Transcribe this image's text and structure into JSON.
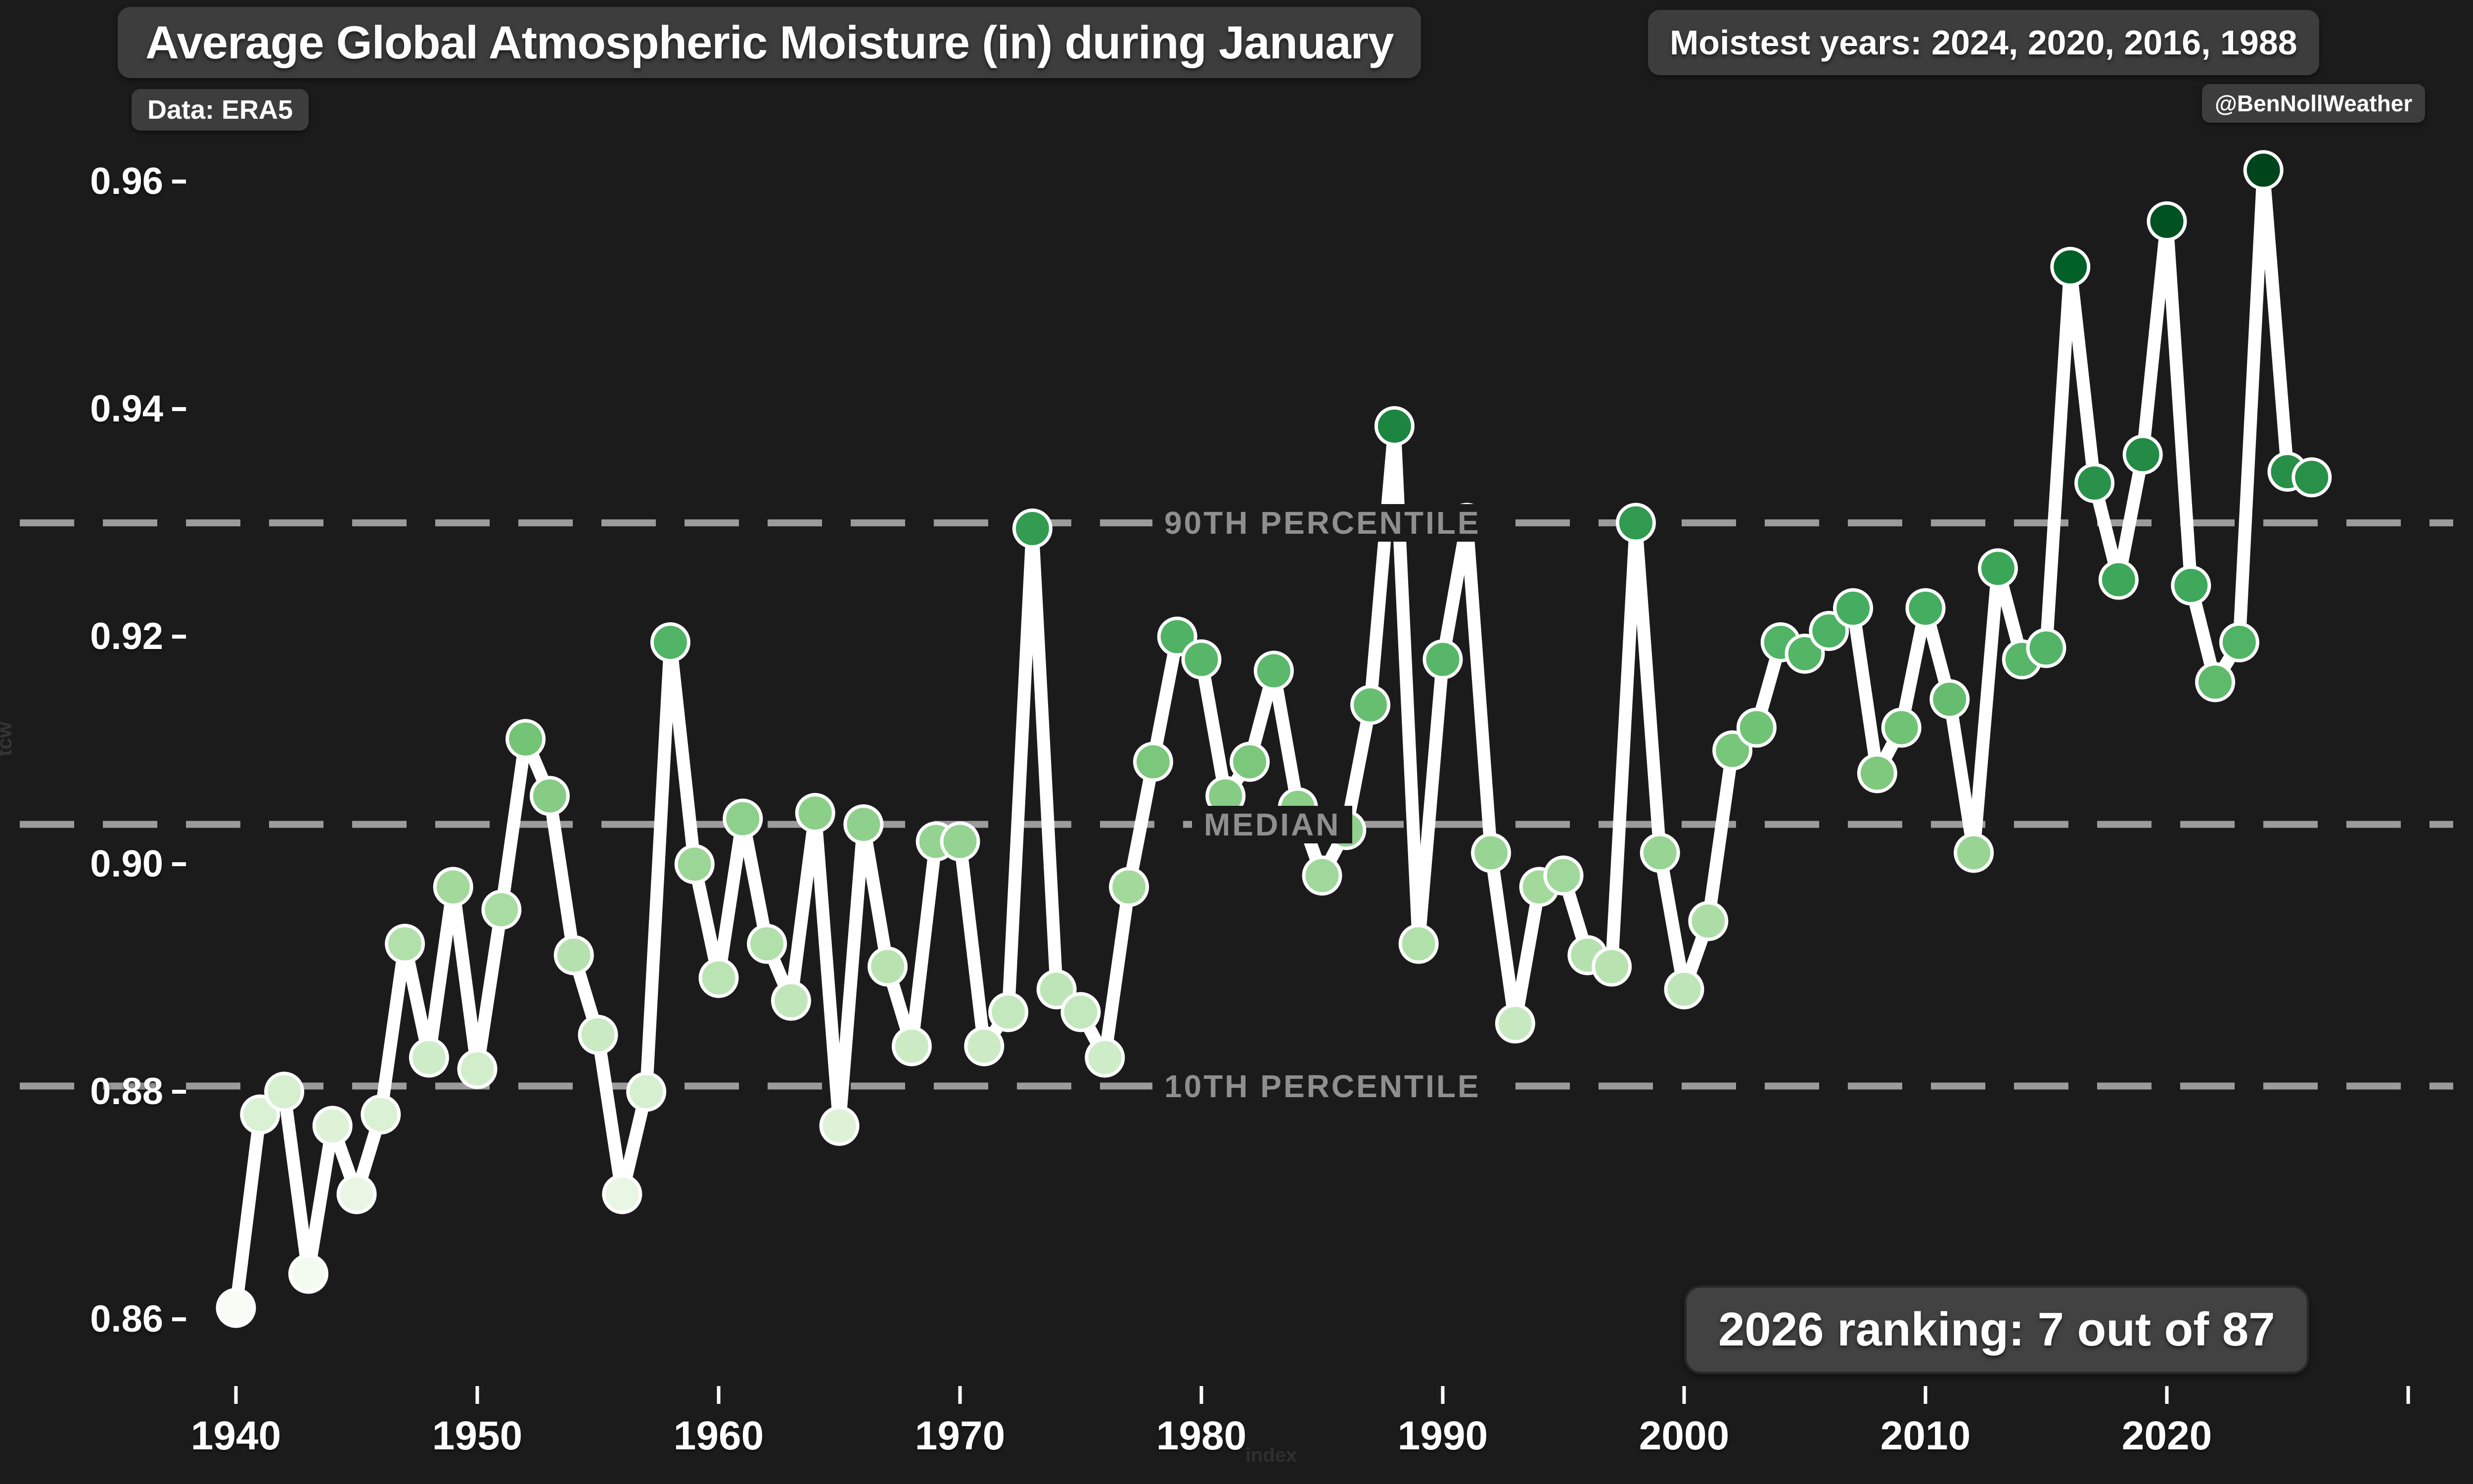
{
  "header": {
    "title": "Average Global Atmospheric Moisture (in) during January",
    "data_source": "Data: ERA5",
    "moistest_years": "Moistest years: 2024, 2020, 2016, 1988",
    "handle": "@BenNollWeather"
  },
  "annotations": {
    "ranking": "2026 ranking: 7 out of 87",
    "p90_label": "90TH PERCENTILE",
    "median_label": "MEDIAN",
    "p10_label": "10TH PERCENTILE",
    "x_axis_title": "index",
    "y_axis_title": "tcw"
  },
  "chart_data": {
    "type": "line",
    "title": "Average Global Atmospheric Moisture (in) during January",
    "xlabel": "index",
    "ylabel": "tcw",
    "x_start_year": 1940,
    "x": [
      1940,
      1941,
      1942,
      1943,
      1944,
      1945,
      1946,
      1947,
      1948,
      1949,
      1950,
      1951,
      1952,
      1953,
      1954,
      1955,
      1956,
      1957,
      1958,
      1959,
      1960,
      1961,
      1962,
      1963,
      1964,
      1965,
      1966,
      1967,
      1968,
      1969,
      1970,
      1971,
      1972,
      1973,
      1974,
      1975,
      1976,
      1977,
      1978,
      1979,
      1980,
      1981,
      1982,
      1983,
      1984,
      1985,
      1986,
      1987,
      1988,
      1989,
      1990,
      1991,
      1992,
      1993,
      1994,
      1995,
      1996,
      1997,
      1998,
      1999,
      2000,
      2001,
      2002,
      2003,
      2004,
      2005,
      2006,
      2007,
      2008,
      2009,
      2010,
      2011,
      2012,
      2013,
      2014,
      2015,
      2016,
      2017,
      2018,
      2019,
      2020,
      2021,
      2022,
      2023,
      2024,
      2025,
      2026
    ],
    "values": [
      0.861,
      0.878,
      0.88,
      0.864,
      0.877,
      0.871,
      0.878,
      0.893,
      0.883,
      0.898,
      0.882,
      0.896,
      0.911,
      0.906,
      0.892,
      0.885,
      0.871,
      0.88,
      0.9195,
      0.9,
      0.89,
      0.904,
      0.893,
      0.888,
      0.9045,
      0.877,
      0.9035,
      0.891,
      0.884,
      0.902,
      0.902,
      0.884,
      0.887,
      0.9295,
      0.889,
      0.887,
      0.883,
      0.898,
      0.909,
      0.92,
      0.918,
      0.906,
      0.909,
      0.917,
      0.905,
      0.899,
      0.903,
      0.914,
      0.9385,
      0.893,
      0.918,
      0.93,
      0.901,
      0.886,
      0.898,
      0.899,
      0.892,
      0.891,
      0.93,
      0.901,
      0.889,
      0.895,
      0.91,
      0.912,
      0.9195,
      0.9185,
      0.9205,
      0.9225,
      0.908,
      0.912,
      0.9225,
      0.9145,
      0.901,
      0.926,
      0.918,
      0.919,
      0.9525,
      0.9335,
      0.925,
      0.936,
      0.9565,
      0.9245,
      0.916,
      0.9195,
      0.961,
      0.9345,
      0.934
    ],
    "reference_lines": {
      "p90": 0.93,
      "median": 0.9035,
      "p10": 0.8805
    },
    "y_ticks": [
      0.86,
      0.88,
      0.9,
      0.92,
      0.94,
      0.96
    ],
    "x_ticks": [
      1940,
      1950,
      1960,
      1970,
      1980,
      1990,
      2000,
      2010,
      2020
    ],
    "extra_unlabeled_x_tick": 2030,
    "ylim": [
      0.853,
      0.968
    ],
    "xlim": [
      1939,
      2031
    ],
    "legend_position": "none",
    "grid": "off",
    "colors": {
      "background": "#1b1b1b",
      "line": "#ffffff",
      "dashed_reference": "#9b9b9b",
      "reference_text": "#8f8f8f",
      "marker_stroke": "#ffffff",
      "marker_scale_low_to_high": [
        "#f7fcf5",
        "#e5f5e0",
        "#c7e9c0",
        "#a1d99b",
        "#74c476",
        "#41ab5d",
        "#238b45",
        "#006d2c",
        "#00441b"
      ],
      "marker_scale_domain": [
        0.861,
        0.961
      ]
    }
  }
}
